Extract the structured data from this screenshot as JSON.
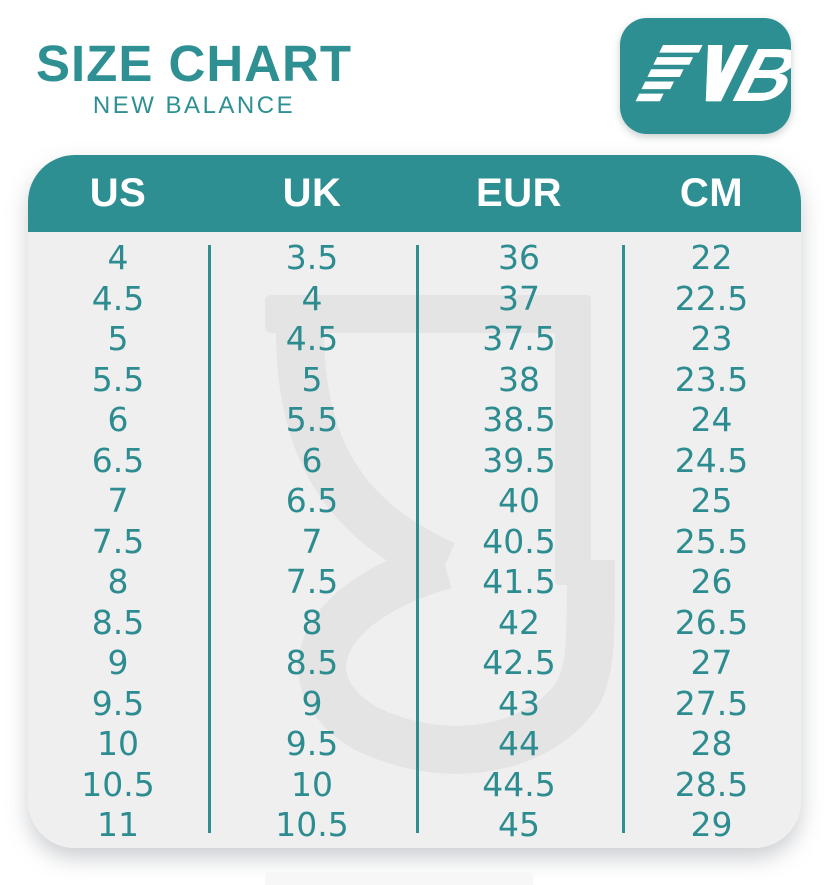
{
  "page": {
    "title": "SIZE CHART",
    "subtitle": "NEW BALANCE",
    "brand": "New Balance",
    "logo_icon": "new-balance-nb-logo"
  },
  "colors": {
    "teal_primary": "#2e8f92",
    "teal_text": "#2d8c90",
    "header_text": "#ffffff",
    "table_body_bg": "#efeff0",
    "watermark_gray": "#e4e4e5",
    "page_bg": "#ffffff"
  },
  "chart_data": {
    "type": "table",
    "title": "SIZE CHART",
    "subtitle": "NEW BALANCE",
    "columns": [
      "US",
      "UK",
      "EUR",
      "CM"
    ],
    "rows": [
      [
        "4",
        "3.5",
        "36",
        "22"
      ],
      [
        "4.5",
        "4",
        "37",
        "22.5"
      ],
      [
        "5",
        "4.5",
        "37.5",
        "23"
      ],
      [
        "5.5",
        "5",
        "38",
        "23.5"
      ],
      [
        "6",
        "5.5",
        "38.5",
        "24"
      ],
      [
        "6.5",
        "6",
        "39.5",
        "24.5"
      ],
      [
        "7",
        "6.5",
        "40",
        "25"
      ],
      [
        "7.5",
        "7",
        "40.5",
        "25.5"
      ],
      [
        "8",
        "7.5",
        "41.5",
        "26"
      ],
      [
        "8.5",
        "8",
        "42",
        "26.5"
      ],
      [
        "9",
        "8.5",
        "42.5",
        "27"
      ],
      [
        "9.5",
        "9",
        "43",
        "27.5"
      ],
      [
        "10",
        "9.5",
        "44",
        "28"
      ],
      [
        "10.5",
        "10",
        "44.5",
        "28.5"
      ],
      [
        "11",
        "10.5",
        "45",
        "29"
      ]
    ],
    "legend_position": "none",
    "grid": "column-dividers-only"
  }
}
